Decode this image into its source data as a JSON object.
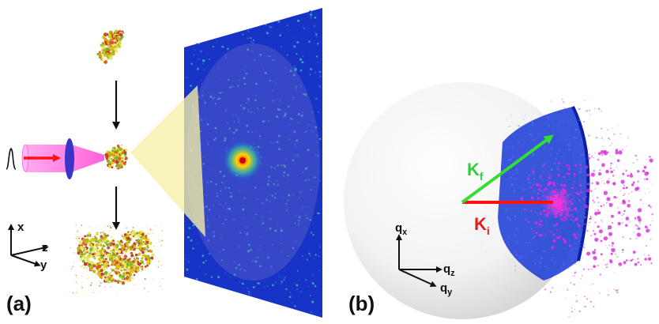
{
  "panels": {
    "a": {
      "label": "(a)",
      "axes": {
        "x": "x",
        "z": "z",
        "y": "y"
      }
    },
    "b": {
      "label": "(b)",
      "axes": {
        "qx": {
          "base": "q",
          "sub": "x"
        },
        "qz": {
          "base": "q",
          "sub": "z"
        },
        "qy": {
          "base": "q",
          "sub": "y"
        }
      },
      "kf": {
        "base": "K",
        "sub": "f"
      },
      "ki": {
        "base": "K",
        "sub": "i"
      }
    }
  },
  "colors": {
    "detector": "#1f3fd6",
    "detector_dark": "#0a1fa8",
    "beam": "#ff7adf",
    "lens": "#3a35c8",
    "arrow_red": "#ff1010",
    "arrow_green": "#33dd33",
    "cone": "#f6f0a6",
    "molecule": "#d4c21a",
    "speckle": "#d42ad9",
    "ki_label": "#e81c1c",
    "kf_label": "#2fcf3a"
  }
}
